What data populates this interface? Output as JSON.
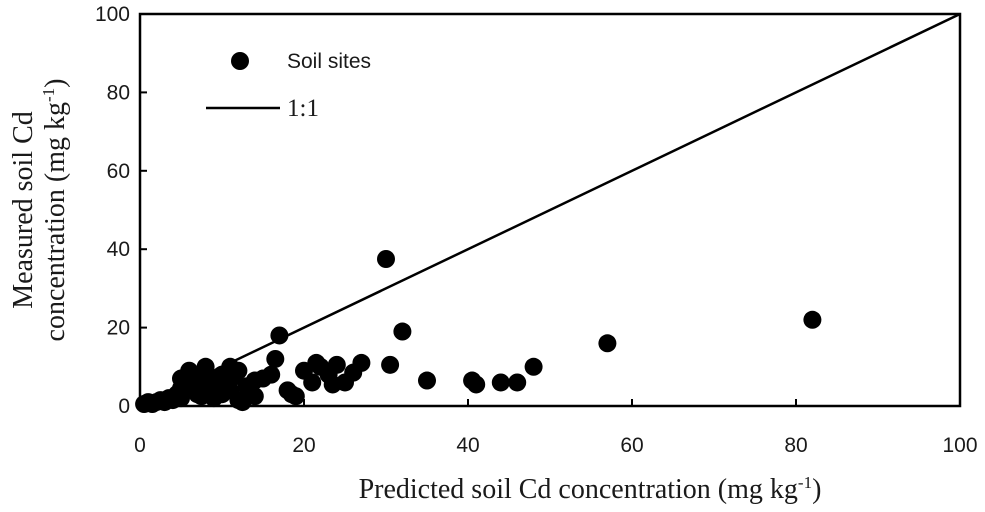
{
  "chart_data": {
    "type": "scatter",
    "xlabel_main": "Predicted soil Cd concentration (mg kg",
    "xlabel_sup": "-1",
    "xlabel_end": ")",
    "ylabel_line1": "Measured soil Cd",
    "ylabel_line2_main": "concentration (mg kg",
    "ylabel_line2_sup": "-1",
    "ylabel_line2_end": ")",
    "xlim": [
      0,
      100
    ],
    "ylim": [
      0,
      100
    ],
    "xticks": [
      "0",
      "20",
      "40",
      "60",
      "80",
      "100"
    ],
    "yticks": [
      "0",
      "20",
      "40",
      "60",
      "80",
      "100"
    ],
    "legend_position": "top-left",
    "grid": false,
    "marker_color": "#000000",
    "line_color": "#000000",
    "series": [
      {
        "name": "Soil sites",
        "kind": "points",
        "x": [
          0.5,
          1.0,
          1.5,
          2.0,
          2.5,
          3.0,
          3.5,
          4.0,
          4.5,
          5.0,
          5.0,
          5.5,
          6.0,
          6.0,
          6.5,
          7.0,
          7.0,
          7.5,
          8.0,
          8.0,
          8.5,
          9.0,
          9.0,
          9.5,
          10.0,
          10.0,
          10.5,
          11.0,
          11.0,
          11.5,
          12.0,
          12.5,
          13.0,
          13.5,
          14.0,
          15.0,
          16.0,
          16.5,
          17.0,
          18.0,
          19.0,
          20.0,
          21.0,
          21.5,
          22.0,
          23.0,
          24.0,
          25.0,
          26.0,
          27.0,
          30.5,
          30.0,
          32.0,
          35.0,
          40.5,
          41.0,
          44.0,
          46.0,
          48.0,
          57.0,
          82.0,
          5.0,
          7.5,
          9.5,
          12.0,
          14.0,
          18.5,
          23.5
        ],
        "y": [
          0.5,
          1.0,
          0.5,
          1.0,
          1.5,
          1.0,
          2.0,
          1.5,
          3.0,
          2.0,
          7.0,
          4.0,
          9.0,
          5.0,
          7.0,
          3.0,
          6.0,
          8.0,
          4.0,
          10.0,
          6.0,
          2.0,
          7.0,
          5.0,
          3.0,
          8.0,
          6.0,
          10.0,
          4.0,
          7.5,
          9.0,
          1.0,
          5.0,
          3.0,
          6.5,
          7.0,
          8.0,
          12.0,
          18.0,
          4.0,
          2.5,
          9.0,
          6.0,
          11.0,
          10.0,
          8.0,
          10.5,
          6.0,
          8.5,
          11.0,
          10.5,
          37.5,
          19.0,
          6.5,
          6.5,
          5.5,
          6.0,
          6.0,
          10.0,
          16.0,
          22.0,
          4.5,
          2.5,
          3.5,
          1.5,
          2.5,
          3.0,
          5.5
        ]
      },
      {
        "name": "1:1",
        "kind": "line",
        "x": [
          0,
          100
        ],
        "y": [
          0,
          100
        ]
      }
    ]
  }
}
